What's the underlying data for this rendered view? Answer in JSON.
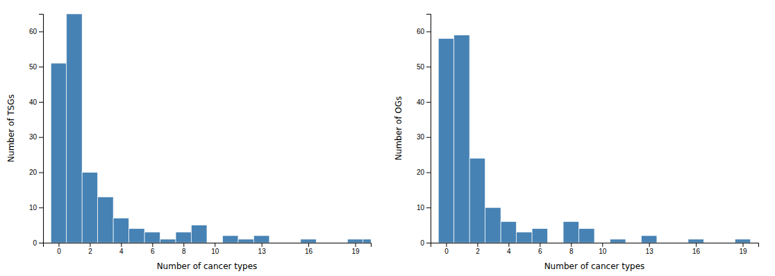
{
  "chart_data": [
    {
      "type": "bar",
      "x_label": "Number of cancer types",
      "y_label": "Number of TSGs",
      "x": [
        0,
        1,
        2,
        3,
        4,
        5,
        6,
        7,
        8,
        9,
        10,
        11,
        12,
        13,
        14,
        15,
        16,
        17,
        18,
        19,
        20
      ],
      "values": [
        51,
        65,
        20,
        13,
        7,
        4,
        3,
        1,
        3,
        5,
        0,
        2,
        1,
        2,
        0,
        0,
        1,
        0,
        0,
        1,
        1
      ],
      "xlim": [
        -1,
        20
      ],
      "xticks": [
        0,
        2,
        4,
        6,
        8,
        10,
        13,
        16,
        19
      ],
      "ylim": [
        0,
        65
      ],
      "yticks": [
        0,
        10,
        20,
        30,
        40,
        50,
        60
      ]
    },
    {
      "type": "bar",
      "x_label": "Number of cancer types",
      "y_label": "Number of OGs",
      "x": [
        0,
        1,
        2,
        3,
        4,
        5,
        6,
        7,
        8,
        9,
        10,
        11,
        12,
        13,
        14,
        15,
        16,
        17,
        18,
        19,
        20
      ],
      "values": [
        58,
        59,
        24,
        10,
        6,
        3,
        4,
        0,
        6,
        4,
        0,
        1,
        0,
        2,
        0,
        0,
        1,
        0,
        0,
        1,
        0
      ],
      "xlim": [
        -1,
        20
      ],
      "xticks": [
        0,
        2,
        4,
        6,
        8,
        10,
        13,
        16,
        19
      ],
      "ylim": [
        0,
        65
      ],
      "yticks": [
        0,
        10,
        20,
        30,
        40,
        50,
        60
      ]
    }
  ]
}
